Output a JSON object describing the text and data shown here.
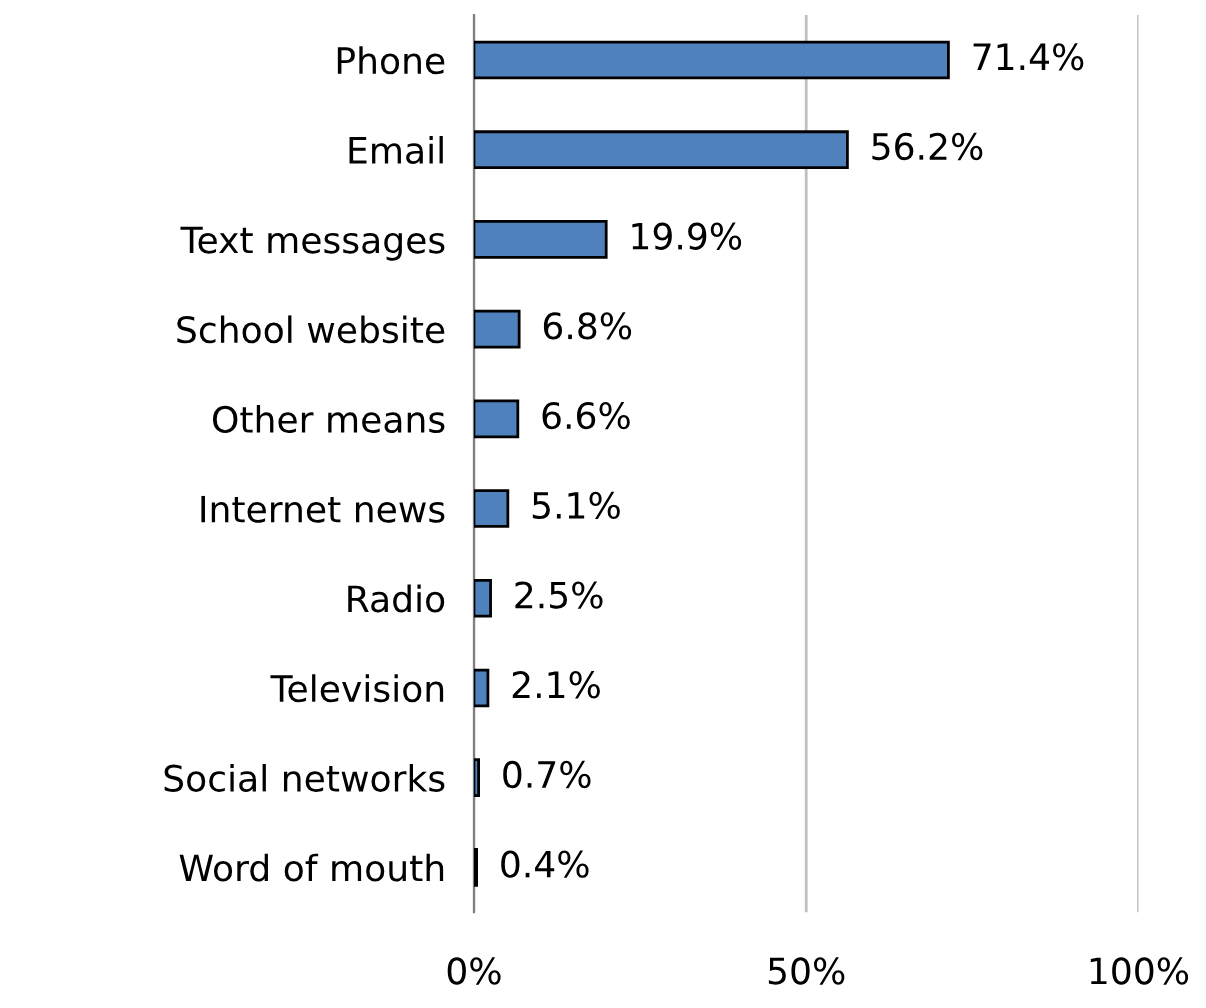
{
  "chart_data": {
    "type": "bar",
    "orientation": "horizontal",
    "categories": [
      "Phone",
      "Email",
      "Text messages",
      "School website",
      "Other means",
      "Internet news",
      "Radio",
      "Television",
      "Social networks",
      "Word of mouth"
    ],
    "values": [
      71.4,
      56.2,
      19.9,
      6.8,
      6.6,
      5.1,
      2.5,
      2.1,
      0.7,
      0.4
    ],
    "value_labels": [
      "71.4%",
      "56.2%",
      "19.9%",
      "6.8%",
      "6.6%",
      "5.1%",
      "2.5%",
      "2.1%",
      "0.7%",
      "0.4%"
    ],
    "color": "#4f81bd",
    "xlim": [
      0,
      100
    ],
    "xticks": [
      {
        "value": 0,
        "label": "0%"
      },
      {
        "value": 50,
        "label": "50%"
      },
      {
        "value": 100,
        "label": "100%"
      }
    ],
    "grid": "x",
    "legend": false
  }
}
